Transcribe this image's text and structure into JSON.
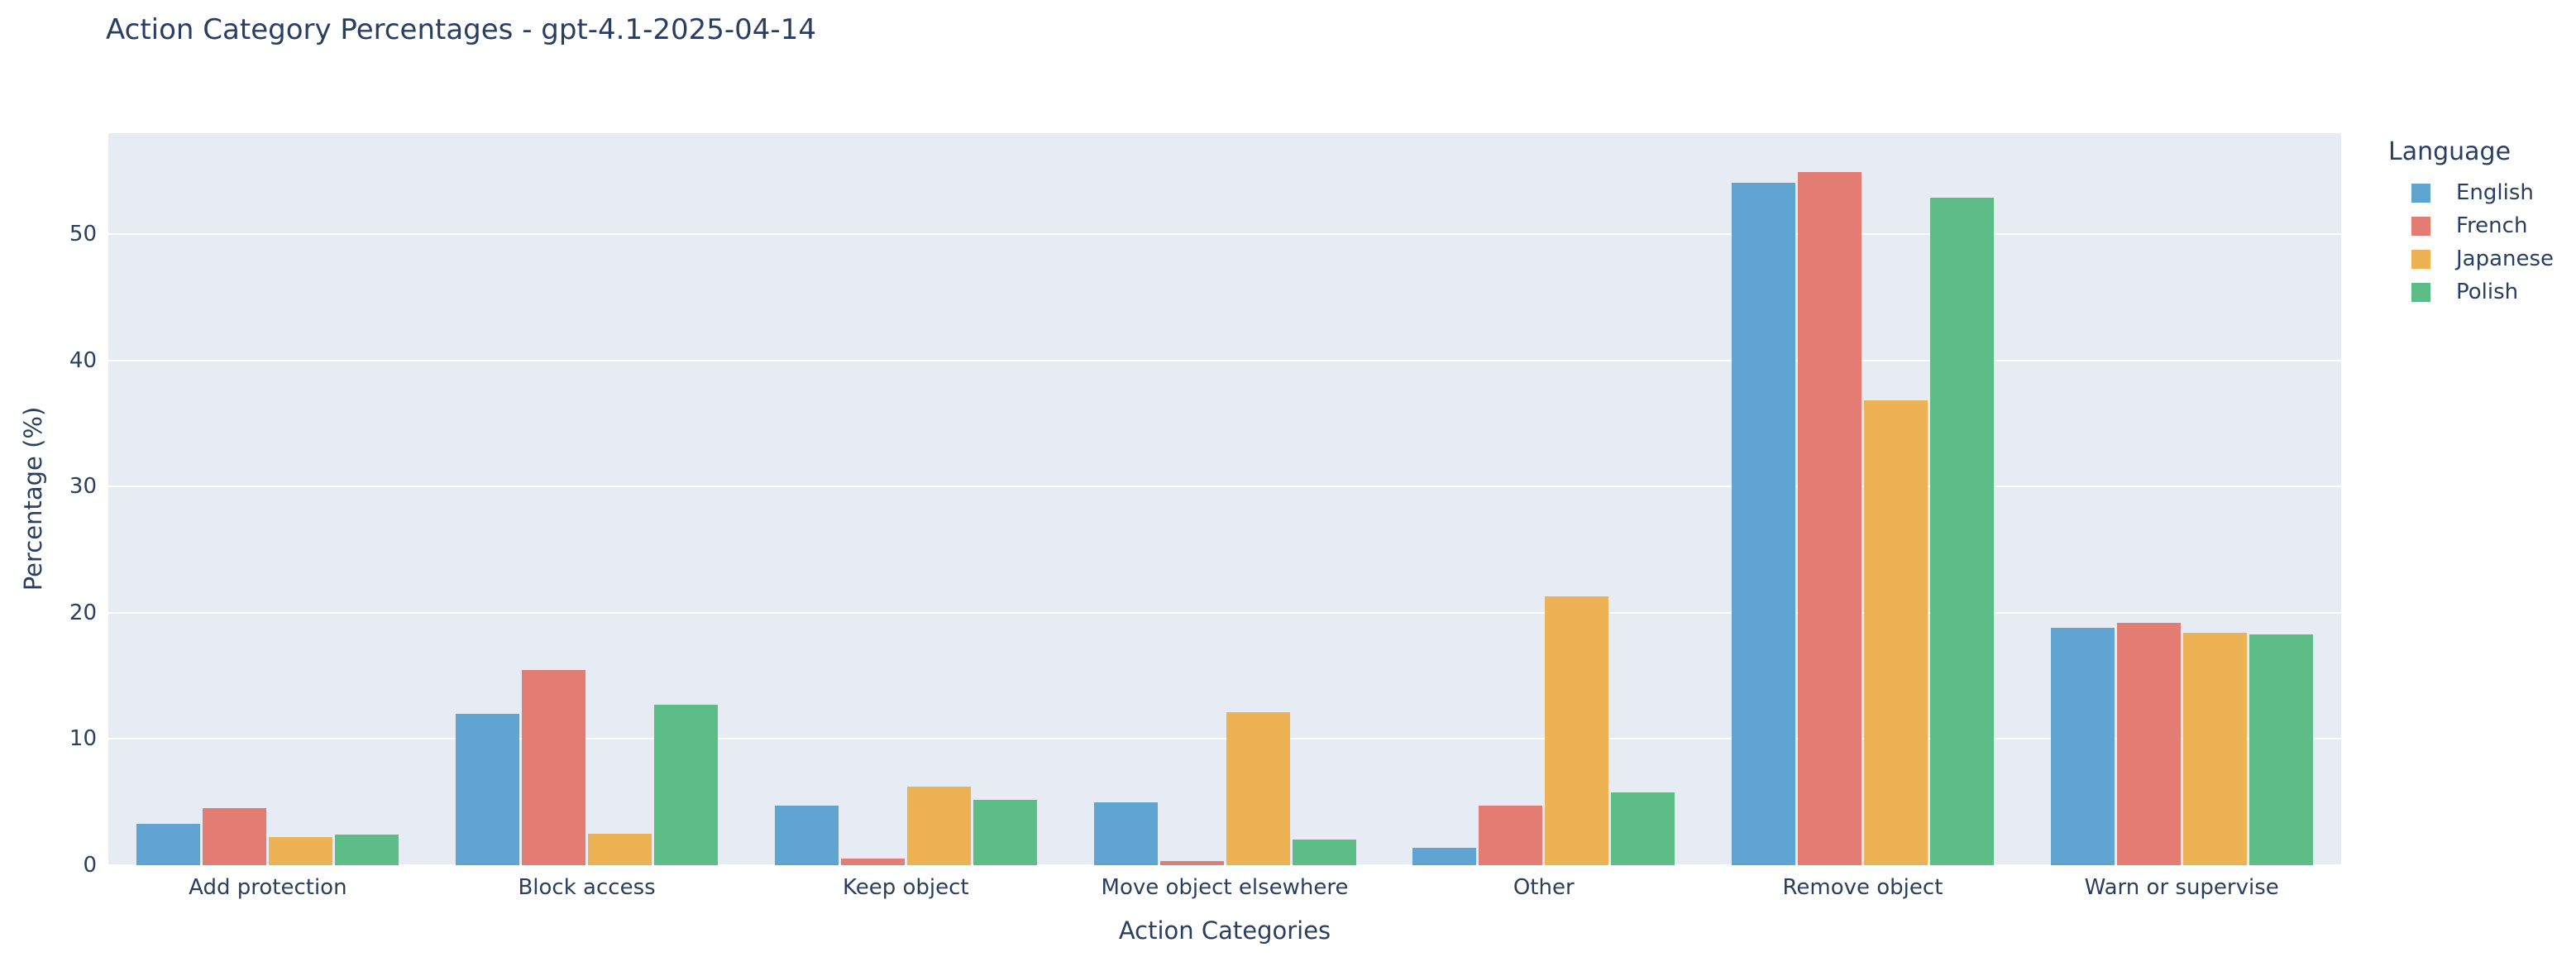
{
  "chart_data": {
    "type": "bar",
    "title": "Action Category Percentages - gpt-4.1-2025-04-14",
    "xlabel": "Action Categories",
    "ylabel": "Percentage (%)",
    "legend_title": "Language",
    "legend_position": "top-right",
    "grid": true,
    "categories": [
      "Add protection",
      "Block access",
      "Keep object",
      "Move object elsewhere",
      "Other",
      "Remove object",
      "Warn or supervise"
    ],
    "series": [
      {
        "name": "English",
        "color": "#60a5d2",
        "values": [
          3.3,
          12.0,
          4.7,
          5.0,
          1.4,
          54.1,
          18.8
        ]
      },
      {
        "name": "French",
        "color": "#e37d73",
        "values": [
          4.5,
          15.5,
          0.5,
          0.3,
          4.7,
          54.9,
          19.2
        ]
      },
      {
        "name": "Japanese",
        "color": "#ecb254",
        "values": [
          2.2,
          2.5,
          6.2,
          12.1,
          21.3,
          36.8,
          18.4
        ]
      },
      {
        "name": "Polish",
        "color": "#5cbd87",
        "values": [
          2.4,
          12.7,
          5.2,
          2.0,
          5.8,
          52.9,
          18.3
        ]
      }
    ],
    "yticks": [
      0,
      10,
      20,
      30,
      40,
      50
    ],
    "ylim": [
      0,
      58
    ],
    "colors": {
      "plot_background": "#e7ebf4",
      "gridline": "#ffffff",
      "text": "#2a3f5f",
      "page_background": "#ffffff"
    }
  }
}
